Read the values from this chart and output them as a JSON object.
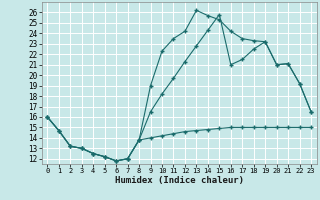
{
  "title": "",
  "xlabel": "Humidex (Indice chaleur)",
  "bg_color": "#c8e8e8",
  "grid_color": "#b0d8d8",
  "line_color": "#1a6b6b",
  "xlim": [
    -0.5,
    23.5
  ],
  "ylim": [
    11.5,
    27.0
  ],
  "xticks": [
    0,
    1,
    2,
    3,
    4,
    5,
    6,
    7,
    8,
    9,
    10,
    11,
    12,
    13,
    14,
    15,
    16,
    17,
    18,
    19,
    20,
    21,
    22,
    23
  ],
  "yticks": [
    12,
    13,
    14,
    15,
    16,
    17,
    18,
    19,
    20,
    21,
    22,
    23,
    24,
    25,
    26
  ],
  "series": [
    {
      "x": [
        0,
        1,
        2,
        3,
        4,
        5,
        6,
        7,
        8,
        9,
        10,
        11,
        12,
        13,
        14,
        15,
        16,
        17,
        18,
        19,
        20,
        21,
        22,
        23
      ],
      "y": [
        16.0,
        14.7,
        13.2,
        13.0,
        12.5,
        12.2,
        11.8,
        12.0,
        13.8,
        19.0,
        22.3,
        23.5,
        24.2,
        26.2,
        25.7,
        25.3,
        24.2,
        23.5,
        23.3,
        23.2,
        21.0,
        21.1,
        19.2,
        16.5
      ]
    },
    {
      "x": [
        0,
        1,
        2,
        3,
        4,
        5,
        6,
        7,
        8,
        9,
        10,
        11,
        12,
        13,
        14,
        15,
        16,
        17,
        18,
        19,
        20,
        21,
        22,
        23
      ],
      "y": [
        16.0,
        14.7,
        13.2,
        13.0,
        12.5,
        12.2,
        11.8,
        12.0,
        13.8,
        16.5,
        18.2,
        19.7,
        21.3,
        22.8,
        24.3,
        25.8,
        21.0,
        21.5,
        22.5,
        23.2,
        21.0,
        21.1,
        19.2,
        16.5
      ]
    },
    {
      "x": [
        0,
        1,
        2,
        3,
        4,
        5,
        6,
        7,
        8,
        9,
        10,
        11,
        12,
        13,
        14,
        15,
        16,
        17,
        18,
        19,
        20,
        21,
        22,
        23
      ],
      "y": [
        16.0,
        14.7,
        13.2,
        13.0,
        12.5,
        12.2,
        11.8,
        12.0,
        13.8,
        14.0,
        14.2,
        14.4,
        14.6,
        14.7,
        14.8,
        14.9,
        15.0,
        15.0,
        15.0,
        15.0,
        15.0,
        15.0,
        15.0,
        15.0
      ]
    }
  ]
}
